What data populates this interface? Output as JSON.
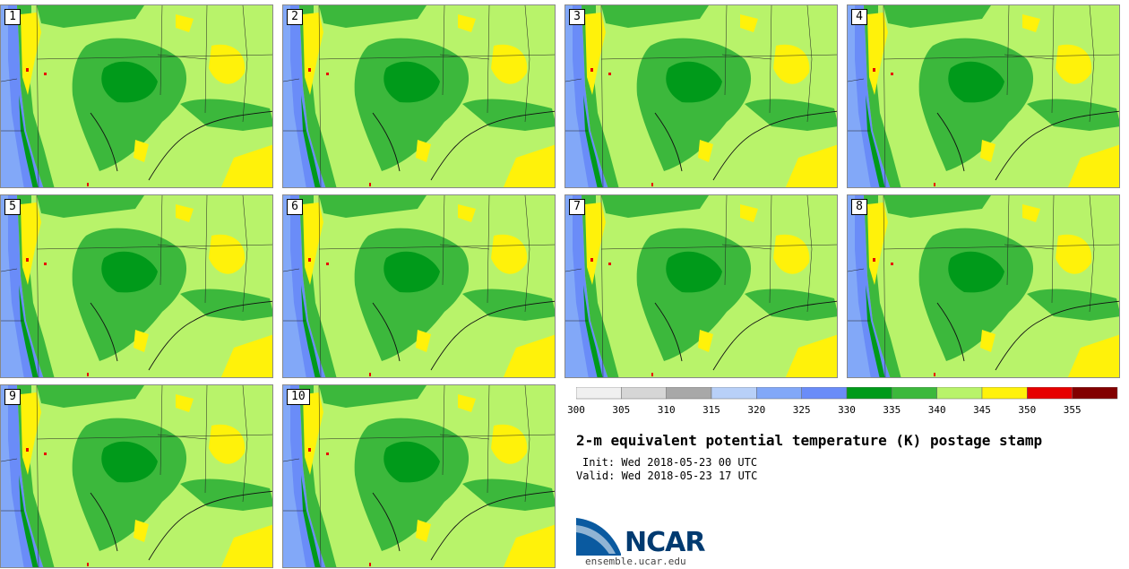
{
  "panels": [
    {
      "label": "1"
    },
    {
      "label": "2"
    },
    {
      "label": "3"
    },
    {
      "label": "4"
    },
    {
      "label": "5"
    },
    {
      "label": "6"
    },
    {
      "label": "7"
    },
    {
      "label": "8"
    },
    {
      "label": "9"
    },
    {
      "label": "10"
    }
  ],
  "colorbar": {
    "ticks": [
      "300",
      "305",
      "310",
      "315",
      "320",
      "325",
      "330",
      "335",
      "340",
      "345",
      "350",
      "355"
    ],
    "colors": [
      "#f0f0f0",
      "#d6d6d6",
      "#a8a8a8",
      "#b8d0f8",
      "#82a8f8",
      "#6a8cf8",
      "#009a1a",
      "#3cb83c",
      "#b8f36a",
      "#fff20a",
      "#e60000",
      "#820000"
    ]
  },
  "title": "2-m equivalent potential temperature (K) postage stamp",
  "init": "Init: Wed 2018-05-23 00 UTC",
  "valid": "Valid: Wed 2018-05-23 17 UTC",
  "logo": {
    "word": "NCAR",
    "url": "ensemble.ucar.edu"
  }
}
